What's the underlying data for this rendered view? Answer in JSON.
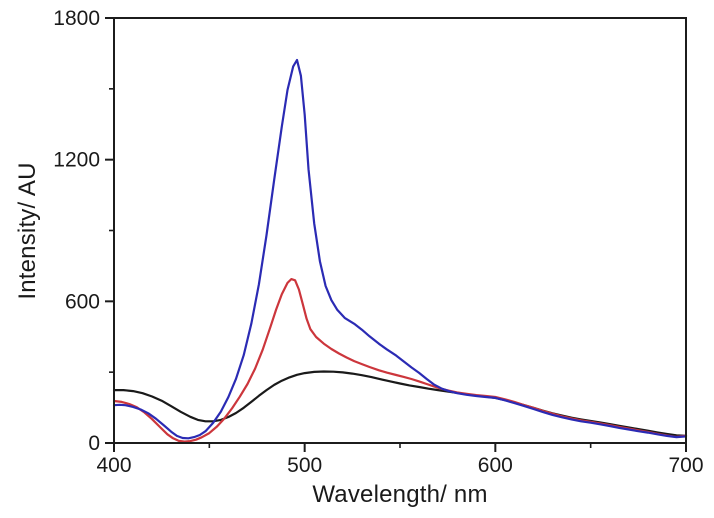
{
  "page": {
    "background": "#ffffff"
  },
  "chart_data": {
    "type": "line",
    "title": "",
    "xlabel": "Wavelength/ nm",
    "ylabel": "Intensity/ AU",
    "xlim": [
      400,
      700
    ],
    "ylim": [
      0,
      1800
    ],
    "x_major_ticks": [
      400,
      500,
      600,
      700
    ],
    "x_minor_ticks": [
      450,
      550,
      650
    ],
    "y_major_ticks": [
      0,
      600,
      1200,
      1800
    ],
    "y_minor_ticks": [
      300,
      900,
      1500
    ],
    "grid": false,
    "legend_position": "none",
    "frame": "full-box",
    "axis_color": "#1c1c1c",
    "tick_label_color": "#1a1a1a",
    "series": [
      {
        "name": "black-curve",
        "color": "#1a1a1a",
        "peak": {
          "wavelength": 510,
          "intensity": 303
        },
        "points": [
          [
            400,
            224
          ],
          [
            405,
            224
          ],
          [
            410,
            220
          ],
          [
            415,
            211
          ],
          [
            420,
            197
          ],
          [
            425,
            179
          ],
          [
            430,
            156
          ],
          [
            435,
            132
          ],
          [
            440,
            111
          ],
          [
            444,
            98
          ],
          [
            448,
            92
          ],
          [
            452,
            92
          ],
          [
            456,
            98
          ],
          [
            460,
            110
          ],
          [
            464,
            127
          ],
          [
            468,
            149
          ],
          [
            472,
            174
          ],
          [
            476,
            200
          ],
          [
            480,
            224
          ],
          [
            484,
            246
          ],
          [
            488,
            264
          ],
          [
            492,
            278
          ],
          [
            496,
            289
          ],
          [
            500,
            296
          ],
          [
            505,
            301
          ],
          [
            510,
            303
          ],
          [
            515,
            302
          ],
          [
            520,
            299
          ],
          [
            525,
            294
          ],
          [
            530,
            287
          ],
          [
            535,
            279
          ],
          [
            540,
            270
          ],
          [
            545,
            261
          ],
          [
            550,
            252
          ],
          [
            555,
            244
          ],
          [
            560,
            237
          ],
          [
            565,
            230
          ],
          [
            570,
            224
          ],
          [
            575,
            218
          ],
          [
            580,
            212
          ],
          [
            585,
            206
          ],
          [
            590,
            201
          ],
          [
            595,
            196
          ],
          [
            600,
            191
          ],
          [
            605,
            182
          ],
          [
            610,
            172
          ],
          [
            615,
            161
          ],
          [
            620,
            149
          ],
          [
            625,
            137
          ],
          [
            630,
            126
          ],
          [
            635,
            116
          ],
          [
            640,
            107
          ],
          [
            645,
            100
          ],
          [
            650,
            93
          ],
          [
            655,
            87
          ],
          [
            660,
            80
          ],
          [
            665,
            73
          ],
          [
            670,
            66
          ],
          [
            675,
            59
          ],
          [
            680,
            52
          ],
          [
            685,
            45
          ],
          [
            690,
            38
          ],
          [
            695,
            32
          ],
          [
            700,
            30
          ]
        ]
      },
      {
        "name": "red-curve",
        "color": "#cc363c",
        "peak": {
          "wavelength": 493,
          "intensity": 694
        },
        "points": [
          [
            400,
            178
          ],
          [
            404,
            174
          ],
          [
            408,
            165
          ],
          [
            412,
            151
          ],
          [
            416,
            129
          ],
          [
            420,
            101
          ],
          [
            424,
            68
          ],
          [
            428,
            37
          ],
          [
            431,
            20
          ],
          [
            434,
            9
          ],
          [
            437,
            6
          ],
          [
            440,
            8
          ],
          [
            443,
            14
          ],
          [
            446,
            24
          ],
          [
            450,
            42
          ],
          [
            454,
            70
          ],
          [
            458,
            105
          ],
          [
            462,
            148
          ],
          [
            466,
            196
          ],
          [
            470,
            250
          ],
          [
            474,
            315
          ],
          [
            478,
            395
          ],
          [
            482,
            490
          ],
          [
            485,
            565
          ],
          [
            488,
            630
          ],
          [
            491,
            678
          ],
          [
            493,
            694
          ],
          [
            495,
            689
          ],
          [
            497,
            650
          ],
          [
            499,
            588
          ],
          [
            501,
            526
          ],
          [
            503,
            482
          ],
          [
            506,
            449
          ],
          [
            510,
            421
          ],
          [
            514,
            398
          ],
          [
            518,
            379
          ],
          [
            522,
            362
          ],
          [
            526,
            347
          ],
          [
            530,
            334
          ],
          [
            534,
            322
          ],
          [
            539,
            308
          ],
          [
            543,
            298
          ],
          [
            548,
            288
          ],
          [
            552,
            280
          ],
          [
            556,
            271
          ],
          [
            560,
            261
          ],
          [
            564,
            250
          ],
          [
            568,
            239
          ],
          [
            572,
            229
          ],
          [
            576,
            221
          ],
          [
            580,
            214
          ],
          [
            585,
            208
          ],
          [
            590,
            203
          ],
          [
            595,
            199
          ],
          [
            600,
            195
          ],
          [
            605,
            185
          ],
          [
            610,
            174
          ],
          [
            615,
            161
          ],
          [
            620,
            149
          ],
          [
            625,
            136
          ],
          [
            630,
            124
          ],
          [
            635,
            113
          ],
          [
            640,
            104
          ],
          [
            645,
            96
          ],
          [
            650,
            90
          ],
          [
            655,
            83
          ],
          [
            660,
            76
          ],
          [
            665,
            68
          ],
          [
            670,
            61
          ],
          [
            675,
            54
          ],
          [
            680,
            47
          ],
          [
            685,
            39
          ],
          [
            690,
            32
          ],
          [
            695,
            26
          ],
          [
            700,
            31
          ]
        ]
      },
      {
        "name": "blue-curve",
        "color": "#2b2bb4",
        "peak": {
          "wavelength": 496,
          "intensity": 1622
        },
        "points": [
          [
            400,
            160
          ],
          [
            403,
            162
          ],
          [
            406,
            160
          ],
          [
            410,
            153
          ],
          [
            414,
            142
          ],
          [
            418,
            126
          ],
          [
            422,
            103
          ],
          [
            426,
            76
          ],
          [
            430,
            48
          ],
          [
            433,
            30
          ],
          [
            436,
            21
          ],
          [
            439,
            20
          ],
          [
            442,
            25
          ],
          [
            445,
            34
          ],
          [
            448,
            50
          ],
          [
            452,
            85
          ],
          [
            456,
            132
          ],
          [
            460,
            195
          ],
          [
            464,
            272
          ],
          [
            468,
            372
          ],
          [
            472,
            505
          ],
          [
            476,
            672
          ],
          [
            480,
            880
          ],
          [
            484,
            1115
          ],
          [
            488,
            1340
          ],
          [
            491,
            1495
          ],
          [
            494,
            1595
          ],
          [
            496,
            1622
          ],
          [
            498,
            1555
          ],
          [
            500,
            1390
          ],
          [
            502,
            1160
          ],
          [
            505,
            930
          ],
          [
            508,
            770
          ],
          [
            511,
            665
          ],
          [
            514,
            605
          ],
          [
            517,
            565
          ],
          [
            521,
            530
          ],
          [
            526,
            505
          ],
          [
            530,
            480
          ],
          [
            534,
            452
          ],
          [
            539,
            420
          ],
          [
            543,
            397
          ],
          [
            548,
            370
          ],
          [
            552,
            345
          ],
          [
            556,
            320
          ],
          [
            560,
            297
          ],
          [
            564,
            271
          ],
          [
            568,
            247
          ],
          [
            572,
            230
          ],
          [
            576,
            219
          ],
          [
            580,
            211
          ],
          [
            585,
            204
          ],
          [
            590,
            199
          ],
          [
            595,
            195
          ],
          [
            600,
            191
          ],
          [
            605,
            181
          ],
          [
            610,
            169
          ],
          [
            615,
            157
          ],
          [
            620,
            144
          ],
          [
            625,
            131
          ],
          [
            630,
            119
          ],
          [
            635,
            109
          ],
          [
            640,
            100
          ],
          [
            645,
            92
          ],
          [
            650,
            86
          ],
          [
            655,
            79
          ],
          [
            660,
            72
          ],
          [
            665,
            64
          ],
          [
            670,
            57
          ],
          [
            675,
            50
          ],
          [
            680,
            44
          ],
          [
            685,
            37
          ],
          [
            690,
            30
          ],
          [
            695,
            25
          ],
          [
            700,
            28
          ]
        ]
      }
    ]
  }
}
